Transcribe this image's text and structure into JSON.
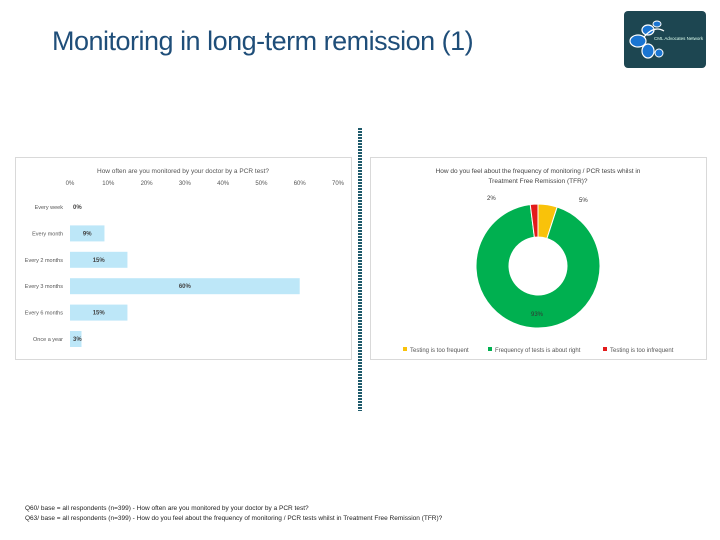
{
  "title": "Monitoring in long-term remission (1)",
  "logo": {
    "text": "CML Advocates Network",
    "icon": "cells-logo-icon"
  },
  "chart_data": [
    {
      "type": "bar",
      "orientation": "horizontal",
      "title": "How often are you monitored by your doctor by a PCR test?",
      "categories": [
        "Every week",
        "Every month",
        "Every 2 months",
        "Every 3 months",
        "Every 6 months",
        "Once a year"
      ],
      "values": [
        0,
        9,
        15,
        60,
        15,
        3
      ],
      "data_labels": [
        "0%",
        "9%",
        "15%",
        "60%",
        "15%",
        "3%"
      ],
      "xlim": [
        0,
        70
      ],
      "ticks": [
        "0%",
        "10%",
        "20%",
        "30%",
        "40%",
        "50%",
        "60%",
        "70%"
      ],
      "tick_position": "top",
      "grid": false,
      "color": "#bde7f8"
    },
    {
      "type": "pie",
      "donut": true,
      "title": "How do you feel about the frequency of monitoring / PCR tests whilst in Treatment Free Remission (TFR)?",
      "labels": [
        "Testing is too frequent",
        "Frequency of tests is about right",
        "Testing is too infrequent"
      ],
      "values": [
        5,
        93,
        2
      ],
      "data_labels": [
        "5%",
        "93%",
        "2%"
      ],
      "colors": [
        "#f9c20a",
        "#00b050",
        "#e31b1b"
      ],
      "legend": "bottom"
    }
  ],
  "footnotes": [
    "Q60/ base = all respondents (n=399) - How often are you monitored by your doctor by a PCR test?",
    "Q63/ base = all respondents (n=399) - How do you feel about the frequency of monitoring / PCR tests whilst in Treatment Free Remission (TFR)?"
  ]
}
